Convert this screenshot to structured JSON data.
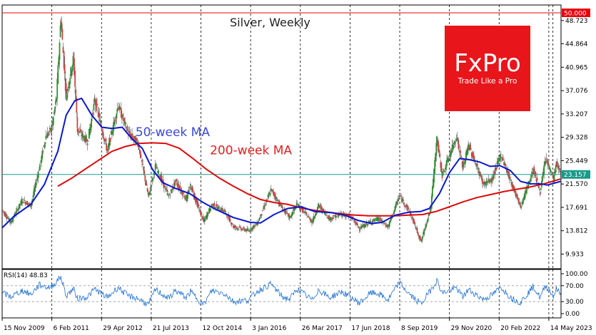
{
  "chart_data": {
    "type": "candlestick",
    "title": "Silver, Weekly",
    "instrument": "Silver",
    "timeframe": "Weekly",
    "y_axis_ticks": [
      "48.723",
      "44.864",
      "40.965",
      "37.076",
      "33.207",
      "29.328",
      "25.449",
      "21.570",
      "17.691",
      "13.812",
      "9.933"
    ],
    "ylim": [
      7.5,
      51.3
    ],
    "x_axis_ticks": [
      "15 Nov 2009",
      "6 Feb 2011",
      "29 Apr 2012",
      "21 Jul 2013",
      "12 Oct 2014",
      "3 Jan 2016",
      "26 Mar 2017",
      "17 Jun 2018",
      "8 Sep 2019",
      "29 Nov 2020",
      "20 Feb 2022",
      "14 May 2023"
    ],
    "xlim": [
      "2009-11-15",
      "2023-09-01"
    ],
    "horizontal_lines": [
      {
        "label": "50.000",
        "value": 50.0,
        "color": "#e8000b"
      },
      {
        "label": "23.157",
        "value": 23.157,
        "color": "#1a9a8a"
      }
    ],
    "price_series": {
      "name": "",
      "points": [
        [
          "2009-11-15",
          17.2
        ],
        [
          "2010-02-01",
          15.2
        ],
        [
          "2010-05-15",
          18.9
        ],
        [
          "2010-08-01",
          18.0
        ],
        [
          "2010-10-01",
          23.0
        ],
        [
          "2010-12-15",
          29.5
        ],
        [
          "2011-02-06",
          30.8
        ],
        [
          "2011-03-20",
          36.0
        ],
        [
          "2011-04-28",
          49.0
        ],
        [
          "2011-06-15",
          36.2
        ],
        [
          "2011-08-20",
          42.5
        ],
        [
          "2011-09-25",
          30.5
        ],
        [
          "2011-12-25",
          28.6
        ],
        [
          "2012-02-28",
          35.5
        ],
        [
          "2012-06-20",
          27.0
        ],
        [
          "2012-09-25",
          34.6
        ],
        [
          "2012-12-25",
          30.0
        ],
        [
          "2013-03-25",
          28.3
        ],
        [
          "2013-06-25",
          19.5
        ],
        [
          "2013-08-28",
          24.5
        ],
        [
          "2013-12-25",
          19.5
        ],
        [
          "2014-02-25",
          22.0
        ],
        [
          "2014-06-01",
          19.0
        ],
        [
          "2014-07-10",
          21.3
        ],
        [
          "2014-11-05",
          15.3
        ],
        [
          "2015-01-20",
          18.2
        ],
        [
          "2015-05-15",
          17.0
        ],
        [
          "2015-08-01",
          14.5
        ],
        [
          "2015-12-15",
          13.8
        ],
        [
          "2016-03-01",
          15.0
        ],
        [
          "2016-07-05",
          20.6
        ],
        [
          "2016-10-15",
          17.5
        ],
        [
          "2016-12-20",
          16.0
        ],
        [
          "2017-02-25",
          18.2
        ],
        [
          "2017-07-10",
          15.3
        ],
        [
          "2017-09-05",
          18.0
        ],
        [
          "2017-12-15",
          15.8
        ],
        [
          "2018-04-01",
          16.6
        ],
        [
          "2018-07-01",
          16.0
        ],
        [
          "2018-09-10",
          14.2
        ],
        [
          "2018-12-20",
          15.3
        ],
        [
          "2019-03-01",
          15.8
        ],
        [
          "2019-05-25",
          14.4
        ],
        [
          "2019-09-05",
          19.6
        ],
        [
          "2019-12-05",
          17.0
        ],
        [
          "2020-03-18",
          12.0
        ],
        [
          "2020-06-15",
          17.8
        ],
        [
          "2020-08-07",
          29.0
        ],
        [
          "2020-09-25",
          23.0
        ],
        [
          "2021-02-01",
          29.5
        ],
        [
          "2021-03-30",
          24.2
        ],
        [
          "2021-05-20",
          28.0
        ],
        [
          "2021-09-30",
          21.6
        ],
        [
          "2021-12-15",
          22.2
        ],
        [
          "2022-03-08",
          26.5
        ],
        [
          "2022-06-15",
          21.5
        ],
        [
          "2022-09-01",
          17.8
        ],
        [
          "2022-12-25",
          24.0
        ],
        [
          "2023-02-25",
          20.2
        ],
        [
          "2023-04-15",
          25.8
        ],
        [
          "2023-06-25",
          22.4
        ],
        [
          "2023-07-20",
          25.0
        ],
        [
          "2023-08-28",
          23.2
        ]
      ]
    },
    "ma50": {
      "name": "50-week MA",
      "color": "#0a18cc",
      "label_color": "#3a48d8",
      "points": [
        [
          "2009-11-15",
          14.3
        ],
        [
          "2010-03-01",
          16.2
        ],
        [
          "2010-08-01",
          18.2
        ],
        [
          "2010-12-01",
          21.5
        ],
        [
          "2011-04-01",
          27.0
        ],
        [
          "2011-06-15",
          33.0
        ],
        [
          "2011-09-01",
          35.4
        ],
        [
          "2011-11-01",
          35.8
        ],
        [
          "2012-02-01",
          33.0
        ],
        [
          "2012-05-01",
          31.0
        ],
        [
          "2012-08-01",
          30.8
        ],
        [
          "2012-11-01",
          31.0
        ],
        [
          "2013-02-01",
          29.0
        ],
        [
          "2013-05-01",
          27.5
        ],
        [
          "2013-08-01",
          24.0
        ],
        [
          "2013-11-01",
          21.8
        ],
        [
          "2014-03-01",
          20.8
        ],
        [
          "2014-07-01",
          20.0
        ],
        [
          "2014-11-01",
          18.5
        ],
        [
          "2015-03-01",
          17.3
        ],
        [
          "2015-08-01",
          16.0
        ],
        [
          "2016-01-01",
          15.2
        ],
        [
          "2016-04-01",
          15.1
        ],
        [
          "2016-08-01",
          16.5
        ],
        [
          "2016-12-01",
          17.5
        ],
        [
          "2017-04-01",
          17.8
        ],
        [
          "2017-08-01",
          17.0
        ],
        [
          "2018-01-01",
          16.8
        ],
        [
          "2018-05-01",
          16.4
        ],
        [
          "2018-09-01",
          15.5
        ],
        [
          "2019-01-01",
          15.0
        ],
        [
          "2019-04-01",
          15.2
        ],
        [
          "2019-08-01",
          16.4
        ],
        [
          "2019-12-01",
          16.9
        ],
        [
          "2020-03-15",
          17.0
        ],
        [
          "2020-06-01",
          17.5
        ],
        [
          "2020-09-01",
          20.0
        ],
        [
          "2020-12-01",
          23.5
        ],
        [
          "2021-03-01",
          25.8
        ],
        [
          "2021-06-01",
          25.6
        ],
        [
          "2021-09-01",
          25.2
        ],
        [
          "2021-12-01",
          24.5
        ],
        [
          "2022-03-01",
          24.6
        ],
        [
          "2022-06-01",
          23.8
        ],
        [
          "2022-09-01",
          22.0
        ],
        [
          "2022-12-01",
          21.6
        ],
        [
          "2023-03-01",
          21.6
        ],
        [
          "2023-05-01",
          21.4
        ],
        [
          "2023-08-28",
          22.0
        ]
      ]
    },
    "ma200": {
      "name": "200-week MA",
      "color": "#dd0a0a",
      "label_color": "#e02020",
      "points": [
        [
          "2011-04-01",
          21.2
        ],
        [
          "2011-08-01",
          22.5
        ],
        [
          "2011-12-01",
          24.0
        ],
        [
          "2012-04-01",
          25.5
        ],
        [
          "2012-08-01",
          27.0
        ],
        [
          "2012-12-01",
          27.8
        ],
        [
          "2013-04-01",
          28.3
        ],
        [
          "2013-08-01",
          28.4
        ],
        [
          "2013-12-01",
          28.3
        ],
        [
          "2014-04-01",
          27.5
        ],
        [
          "2014-08-01",
          25.8
        ],
        [
          "2014-12-01",
          24.0
        ],
        [
          "2015-04-01",
          22.5
        ],
        [
          "2015-08-01",
          21.2
        ],
        [
          "2015-12-01",
          20.0
        ],
        [
          "2016-04-01",
          19.0
        ],
        [
          "2016-08-01",
          18.5
        ],
        [
          "2016-12-01",
          18.2
        ],
        [
          "2017-04-01",
          17.6
        ],
        [
          "2017-08-01",
          17.2
        ],
        [
          "2017-12-01",
          16.9
        ],
        [
          "2018-04-01",
          16.6
        ],
        [
          "2018-08-01",
          16.4
        ],
        [
          "2018-12-01",
          16.3
        ],
        [
          "2019-04-01",
          16.3
        ],
        [
          "2019-08-01",
          16.3
        ],
        [
          "2019-12-01",
          16.4
        ],
        [
          "2020-04-01",
          16.5
        ],
        [
          "2020-08-01",
          17.0
        ],
        [
          "2020-12-01",
          17.8
        ],
        [
          "2021-04-01",
          18.6
        ],
        [
          "2021-08-01",
          19.3
        ],
        [
          "2021-12-01",
          19.8
        ],
        [
          "2022-04-01",
          20.3
        ],
        [
          "2022-08-01",
          20.7
        ],
        [
          "2022-12-01",
          21.1
        ],
        [
          "2023-04-01",
          21.6
        ],
        [
          "2023-08-28",
          22.4
        ]
      ]
    },
    "rsi": {
      "label": "RSI(14) 48.83",
      "color": "#1e6fd0",
      "y_ticks": [
        "100.00",
        "70.00",
        "30.00",
        "0.00"
      ],
      "ylim": [
        0,
        100
      ],
      "levels": [
        70,
        30
      ],
      "points": [
        [
          "2009-11-15",
          52
        ],
        [
          "2010-02-01",
          42
        ],
        [
          "2010-05-15",
          58
        ],
        [
          "2010-08-01",
          48
        ],
        [
          "2010-10-15",
          72
        ],
        [
          "2011-01-01",
          66
        ],
        [
          "2011-02-06",
          68
        ],
        [
          "2011-04-28",
          92
        ],
        [
          "2011-06-15",
          45
        ],
        [
          "2011-08-20",
          62
        ],
        [
          "2011-09-25",
          38
        ],
        [
          "2011-12-25",
          42
        ],
        [
          "2012-02-28",
          62
        ],
        [
          "2012-06-20",
          40
        ],
        [
          "2012-09-25",
          66
        ],
        [
          "2012-12-25",
          44
        ],
        [
          "2013-03-25",
          38
        ],
        [
          "2013-06-25",
          22
        ],
        [
          "2013-08-28",
          60
        ],
        [
          "2013-12-25",
          38
        ],
        [
          "2014-02-25",
          58
        ],
        [
          "2014-06-01",
          40
        ],
        [
          "2014-07-10",
          55
        ],
        [
          "2014-11-05",
          22
        ],
        [
          "2015-01-20",
          58
        ],
        [
          "2015-05-15",
          50
        ],
        [
          "2015-08-01",
          30
        ],
        [
          "2015-12-15",
          34
        ],
        [
          "2016-03-01",
          56
        ],
        [
          "2016-07-05",
          74
        ],
        [
          "2016-10-15",
          42
        ],
        [
          "2016-12-20",
          36
        ],
        [
          "2017-02-25",
          62
        ],
        [
          "2017-07-10",
          34
        ],
        [
          "2017-09-05",
          60
        ],
        [
          "2017-12-15",
          40
        ],
        [
          "2018-04-01",
          55
        ],
        [
          "2018-07-01",
          40
        ],
        [
          "2018-09-10",
          26
        ],
        [
          "2018-12-20",
          52
        ],
        [
          "2019-03-01",
          50
        ],
        [
          "2019-05-25",
          34
        ],
        [
          "2019-09-05",
          78
        ],
        [
          "2019-12-05",
          48
        ],
        [
          "2020-03-18",
          24
        ],
        [
          "2020-06-15",
          60
        ],
        [
          "2020-08-07",
          84
        ],
        [
          "2020-09-25",
          52
        ],
        [
          "2021-02-01",
          64
        ],
        [
          "2021-03-30",
          42
        ],
        [
          "2021-05-20",
          60
        ],
        [
          "2021-09-30",
          36
        ],
        [
          "2021-12-15",
          46
        ],
        [
          "2022-03-08",
          66
        ],
        [
          "2022-06-15",
          38
        ],
        [
          "2022-09-01",
          28
        ],
        [
          "2022-12-25",
          68
        ],
        [
          "2023-02-25",
          40
        ],
        [
          "2023-04-15",
          70
        ],
        [
          "2023-06-25",
          44
        ],
        [
          "2023-07-20",
          62
        ],
        [
          "2023-08-28",
          48.83
        ]
      ]
    },
    "annotations": [
      {
        "text": "50-week MA",
        "color": "#3a48d8",
        "at": [
          "2013-03-01",
          29.5
        ]
      },
      {
        "text": "200-week MA",
        "color": "#e02020",
        "at": [
          "2015-01-01",
          26.5
        ]
      }
    ],
    "grid": true,
    "colors": {
      "bull": "#2d8f2d",
      "bear": "#c8483e",
      "wick": "#6b6b6b"
    }
  },
  "logo": {
    "brand": "FxPro",
    "tagline": "Trade Like a Pro",
    "background": "#e8151b",
    "text_color": "#ffffff"
  }
}
